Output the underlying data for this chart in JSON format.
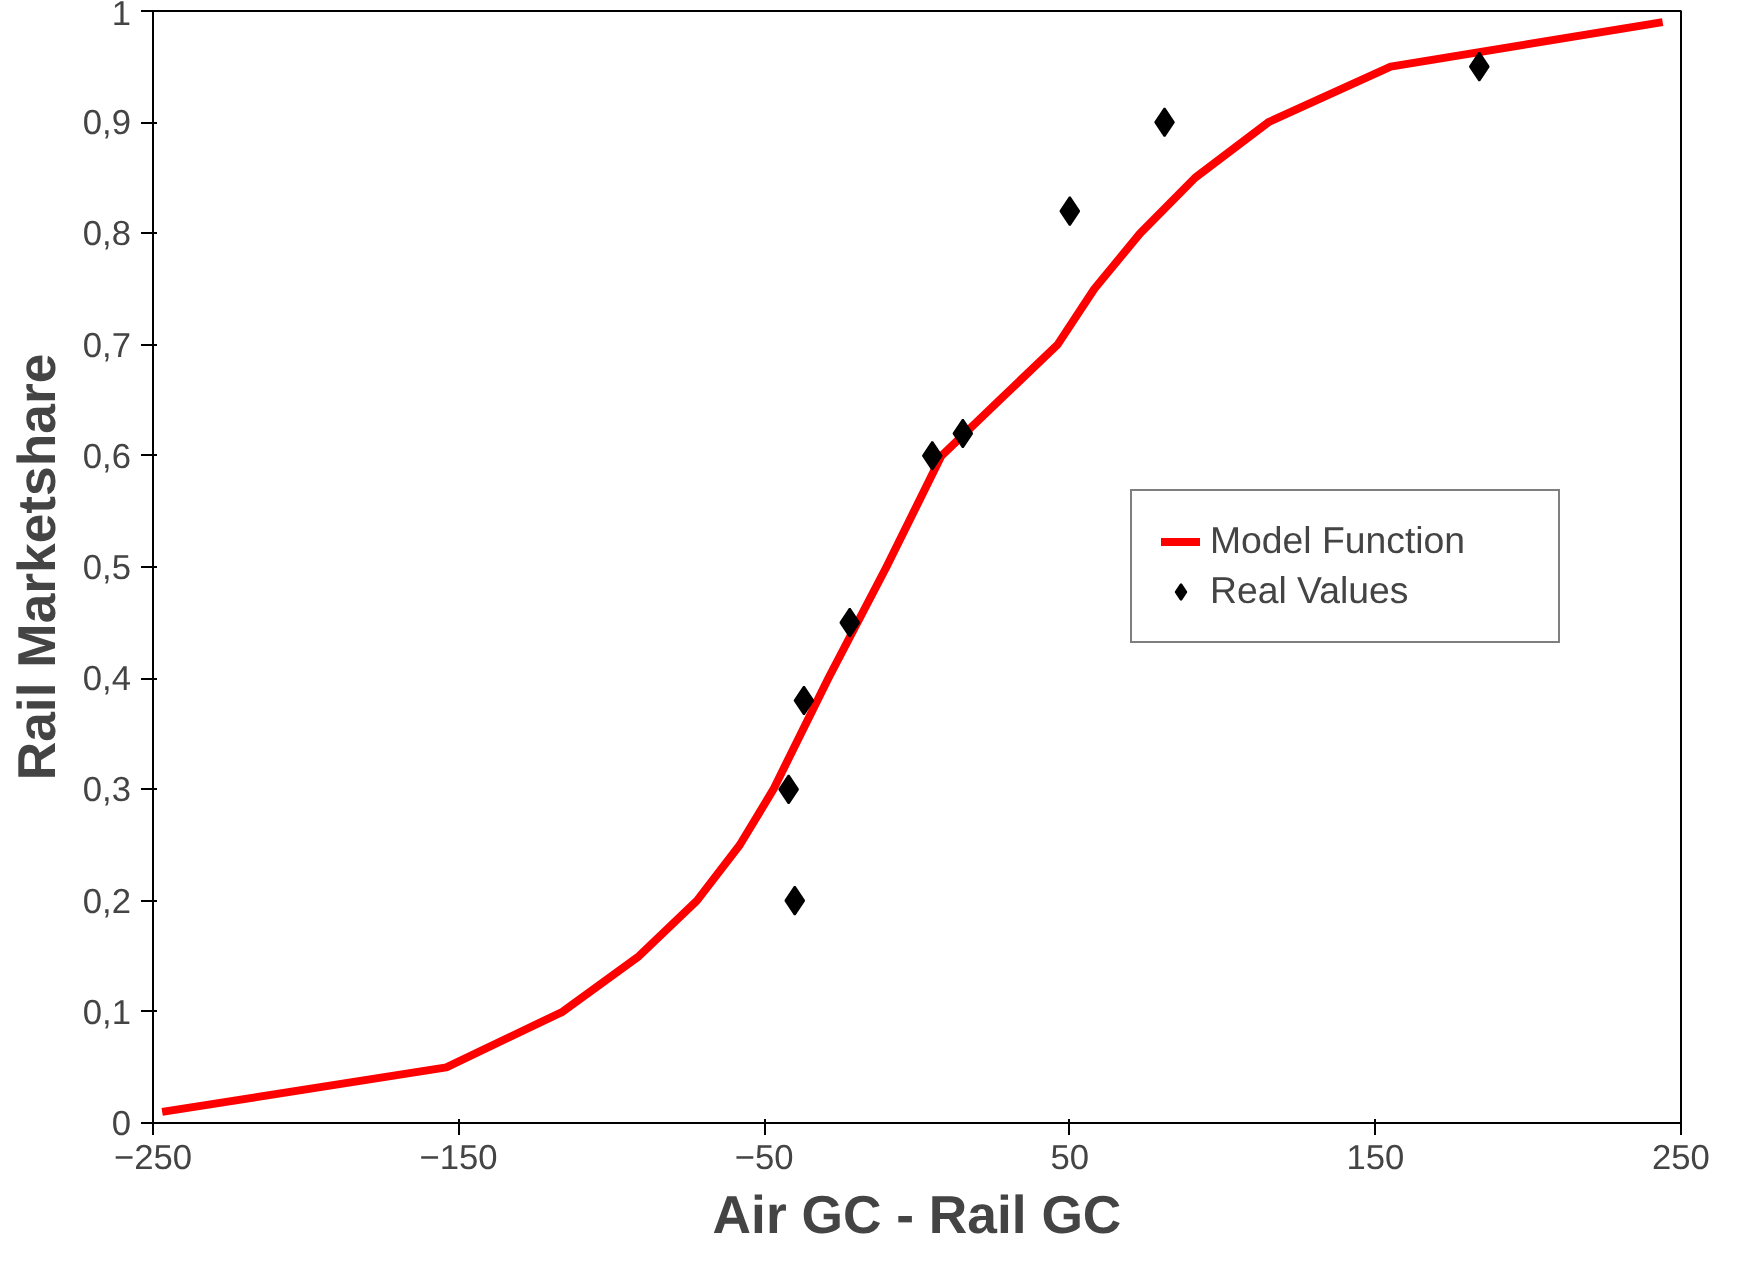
{
  "chart_data": {
    "type": "line",
    "xlabel": "Air GC - Rail GC",
    "ylabel": "Rail Marketshare",
    "xlim": [
      -250,
      250
    ],
    "xticks": [
      -250,
      -150,
      -50,
      50,
      150,
      250
    ],
    "ylim": [
      0,
      1
    ],
    "yticks": [
      {
        "value": 0,
        "label": "0"
      },
      {
        "value": 0.1,
        "label": "0,1"
      },
      {
        "value": 0.2,
        "label": "0,2"
      },
      {
        "value": 0.3,
        "label": "0,3"
      },
      {
        "value": 0.4,
        "label": "0,4"
      },
      {
        "value": 0.5,
        "label": "0,5"
      },
      {
        "value": 0.6,
        "label": "0,6"
      },
      {
        "value": 0.7,
        "label": "0,7"
      },
      {
        "value": 0.8,
        "label": "0,8"
      },
      {
        "value": 0.9,
        "label": "0,9"
      },
      {
        "value": 1,
        "label": "1"
      }
    ],
    "grid": false,
    "legend": "right",
    "series": [
      {
        "name": "Model Function",
        "color": "#ff0000",
        "marker": "none",
        "x": [
          -247,
          -154,
          -116,
          -91,
          -72,
          -58,
          -47,
          -29,
          -10,
          8,
          27,
          46,
          58,
          73,
          91,
          115,
          155,
          244
        ],
        "values": [
          0.01,
          0.05,
          0.1,
          0.15,
          0.2,
          0.25,
          0.3,
          0.4,
          0.5,
          0.6,
          0.65,
          0.7,
          0.75,
          0.8,
          0.85,
          0.9,
          0.95,
          0.99
        ]
      },
      {
        "name": "Real Values",
        "type": "scatter",
        "color": "#000000",
        "marker": "diamond",
        "x": [
          -40,
          -42,
          -37,
          -22,
          5,
          15,
          50,
          81,
          184
        ],
        "values": [
          0.2,
          0.3,
          0.38,
          0.45,
          0.6,
          0.62,
          0.82,
          0.9,
          0.95
        ]
      }
    ]
  }
}
